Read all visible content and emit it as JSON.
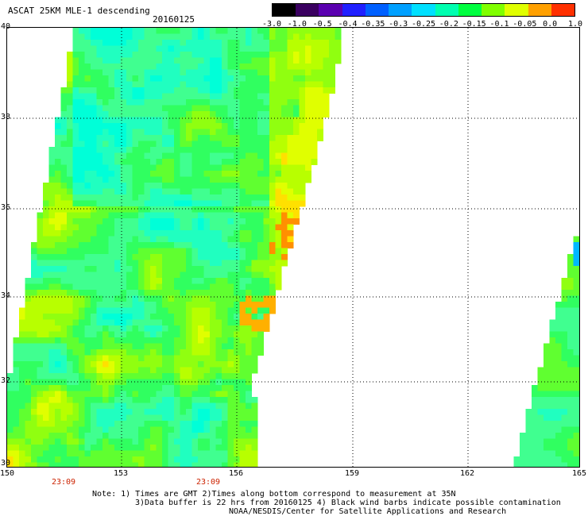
{
  "header": {
    "title": "ASCAT 25KM MLE-1 descending",
    "date": "20160125"
  },
  "colorbar": {
    "labels": [
      "-3.0",
      "-1.0",
      "-0.5",
      "-0.4",
      "-0.35",
      "-0.3",
      "-0.25",
      "-0.2",
      "-0.15",
      "-0.1",
      "-0.05",
      "0.0",
      "1.0"
    ],
    "colors": [
      "#000000",
      "#3a0060",
      "#5a00b0",
      "#2020ff",
      "#0060ff",
      "#00a0ff",
      "#00e0ff",
      "#00ffb0",
      "#00ff40",
      "#80ff00",
      "#e0ff00",
      "#ffa000",
      "#ff3000"
    ]
  },
  "map": {
    "lat_labels": [
      "40",
      "38",
      "36",
      "34",
      "32",
      "30"
    ],
    "lon_labels": [
      "150",
      "153",
      "156",
      "159",
      "162",
      "165"
    ],
    "time_labels": [
      "23:09",
      "23:09"
    ],
    "lat_range": [
      30,
      40
    ],
    "lon_range": [
      150,
      165
    ],
    "grid": true
  },
  "notes": {
    "line1": "Note: 1) Times are GMT 2)Times along bottom correspond to measurement at 35N",
    "line2": "3)Data buffer is 22 hrs from 20160125 4) Black wind barbs indicate possible contamination",
    "line3": "NOAA/NESDIS/Center for Satellite Applications and Research"
  }
}
